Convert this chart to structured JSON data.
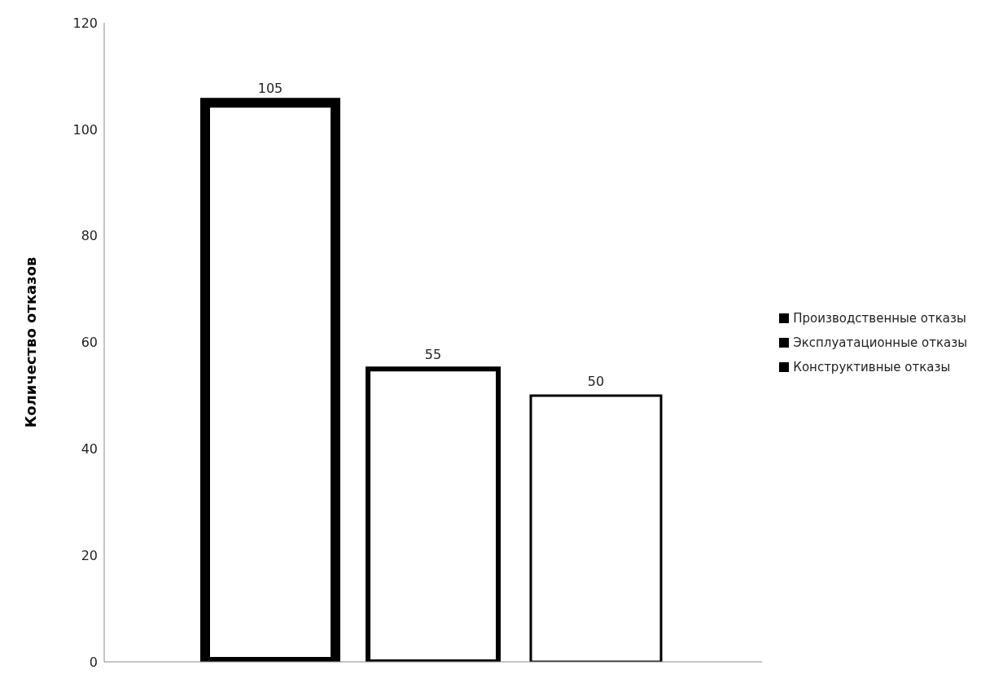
{
  "chart_data": {
    "type": "bar",
    "ylabel": "Количество отказов",
    "categories": [
      null
    ],
    "series": [
      {
        "name": "Производственные  отказы",
        "color": "#000000",
        "values": [
          105
        ]
      },
      {
        "name": "Эксплуатационные отказы",
        "color": "#000000",
        "values": [
          55
        ]
      },
      {
        "name": "Конструктивные  отказы",
        "color": "#000000",
        "values": [
          50
        ]
      }
    ],
    "ylim": [
      0,
      120
    ],
    "yticks": [
      0,
      20,
      40,
      60,
      80,
      100,
      120
    ],
    "grid": false,
    "legend": "right",
    "data_labels": true
  }
}
